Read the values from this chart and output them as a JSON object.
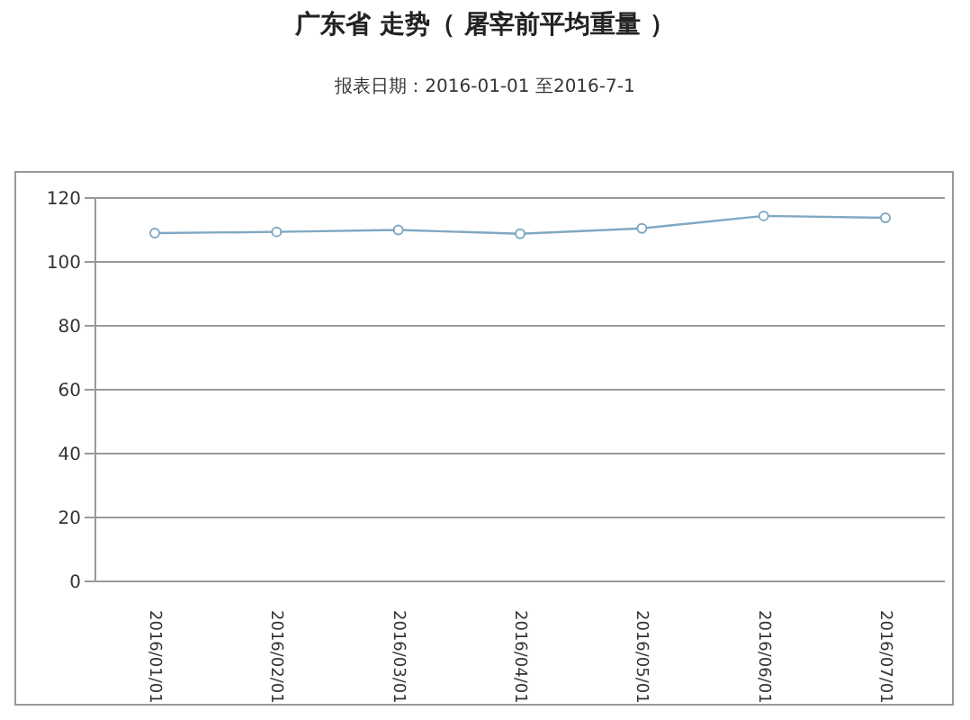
{
  "chart_data": {
    "type": "line",
    "title": "广东省 走势（ 屠宰前平均重量 ）",
    "subtitle": "报表日期：2016-01-01 至2016-7-1",
    "categories": [
      "2016/01/01",
      "2016/02/01",
      "2016/03/01",
      "2016/04/01",
      "2016/05/01",
      "2016/06/01",
      "2016/07/01"
    ],
    "series": [
      {
        "color": "#7fa8c4",
        "values": [
          109.0,
          109.4,
          110.0,
          108.8,
          110.5,
          114.4,
          113.8
        ]
      }
    ],
    "ylim": [
      0,
      120
    ],
    "yticks": [
      0,
      20,
      40,
      60,
      80,
      100,
      120
    ],
    "grid": "y",
    "marker": "circle",
    "legend": false
  }
}
